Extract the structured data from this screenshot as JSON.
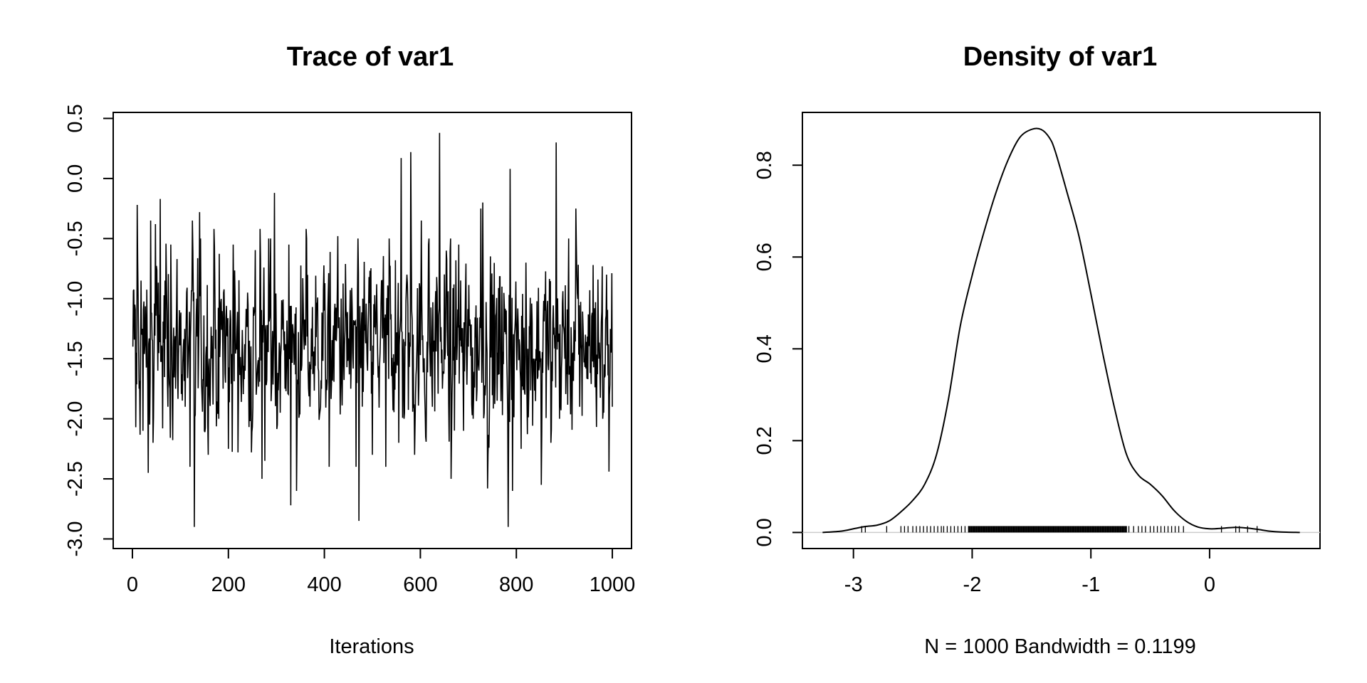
{
  "chart_data": [
    {
      "type": "line",
      "title": "Trace of var1",
      "xlabel": "Iterations",
      "ylabel": "",
      "xlim": [
        -40,
        1040
      ],
      "ylim": [
        -3.08,
        0.55
      ],
      "xticks": [
        0,
        200,
        400,
        600,
        800,
        1000
      ],
      "xtick_labels": [
        "0",
        "200",
        "400",
        "600",
        "800",
        "1000"
      ],
      "yticks": [
        -3.0,
        -2.5,
        -2.0,
        -1.5,
        -1.0,
        -0.5,
        0.0,
        0.5
      ],
      "ytick_labels": [
        "-3.0",
        "-2.5",
        "-2.0",
        "-1.5",
        "-1.0",
        "-0.5",
        "0.0",
        "0.5"
      ],
      "grid": false,
      "n_iterations": 1000,
      "series": [
        {
          "color": "#000000",
          "keypoints": [
            [
              1,
              -1.4
            ],
            [
              5,
              -1.05
            ],
            [
              7,
              -2.07
            ],
            [
              10,
              -0.22
            ],
            [
              14,
              -1.75
            ],
            [
              18,
              -0.85
            ],
            [
              22,
              -2.1
            ],
            [
              28,
              -1.3
            ],
            [
              33,
              -2.45
            ],
            [
              38,
              -0.35
            ],
            [
              43,
              -2.2
            ],
            [
              48,
              -0.38
            ],
            [
              53,
              -1.6
            ],
            [
              58,
              -0.17
            ],
            [
              63,
              -2.08
            ],
            [
              68,
              -0.85
            ],
            [
              74,
              -1.9
            ],
            [
              80,
              -0.55
            ],
            [
              90,
              -1.75
            ],
            [
              100,
              -1.2
            ],
            [
              110,
              -1.9
            ],
            [
              120,
              -2.4
            ],
            [
              125,
              -0.35
            ],
            [
              129,
              -2.9
            ],
            [
              134,
              -1.0
            ],
            [
              140,
              -0.28
            ],
            [
              150,
              -2.1
            ],
            [
              160,
              -1.5
            ],
            [
              170,
              -0.42
            ],
            [
              180,
              -2.0
            ],
            [
              190,
              -0.95
            ],
            [
              200,
              -2.25
            ],
            [
              210,
              -0.55
            ],
            [
              220,
              -2.28
            ],
            [
              235,
              -1.6
            ],
            [
              240,
              -0.95
            ],
            [
              248,
              -2.28
            ],
            [
              258,
              -1.8
            ],
            [
              266,
              -0.42
            ],
            [
              270,
              -2.5
            ],
            [
              276,
              -2.35
            ],
            [
              282,
              -1.3
            ],
            [
              288,
              -0.5
            ],
            [
              296,
              -0.12
            ],
            [
              302,
              -2.05
            ],
            [
              310,
              -1.4
            ],
            [
              318,
              -1.75
            ],
            [
              326,
              -0.55
            ],
            [
              330,
              -2.72
            ],
            [
              336,
              -1.3
            ],
            [
              342,
              -2.6
            ],
            [
              352,
              -1.6
            ],
            [
              362,
              -0.42
            ],
            [
              370,
              -1.9
            ],
            [
              380,
              -1.4
            ],
            [
              392,
              -1.9
            ],
            [
              400,
              -1.1
            ],
            [
              410,
              -2.4
            ],
            [
              428,
              -0.48
            ],
            [
              440,
              -1.5
            ],
            [
              455,
              -1.75
            ],
            [
              466,
              -2.4
            ],
            [
              472,
              -2.85
            ],
            [
              480,
              -1.0
            ],
            [
              490,
              -1.6
            ],
            [
              500,
              -2.3
            ],
            [
              510,
              -1.2
            ],
            [
              520,
              -0.85
            ],
            [
              528,
              -2.4
            ],
            [
              535,
              -0.5
            ],
            [
              548,
              -0.68
            ],
            [
              555,
              -2.2
            ],
            [
              560,
              0.17
            ],
            [
              566,
              -2.0
            ],
            [
              572,
              -0.8
            ],
            [
              580,
              0.22
            ],
            [
              588,
              -2.3
            ],
            [
              595,
              -1.4
            ],
            [
              602,
              -0.35
            ],
            [
              611,
              -2.15
            ],
            [
              617,
              -0.55
            ],
            [
              625,
              -1.9
            ],
            [
              634,
              -0.82
            ],
            [
              640,
              0.38
            ],
            [
              646,
              -1.75
            ],
            [
              654,
              -0.6
            ],
            [
              664,
              -2.5
            ],
            [
              672,
              -1.4
            ],
            [
              680,
              -0.55
            ],
            [
              690,
              -2.1
            ],
            [
              700,
              -1.4
            ],
            [
              710,
              -2.0
            ],
            [
              726,
              -0.25
            ],
            [
              730,
              -0.2
            ],
            [
              736,
              -1.7
            ],
            [
              740,
              -2.58
            ],
            [
              748,
              -1.2
            ],
            [
              760,
              -1.85
            ],
            [
              770,
              -0.9
            ],
            [
              783,
              -2.9
            ],
            [
              787,
              0.08
            ],
            [
              792,
              -2.6
            ],
            [
              800,
              -1.35
            ],
            [
              810,
              -2.25
            ],
            [
              820,
              -0.7
            ],
            [
              836,
              -1.5
            ],
            [
              852,
              -2.55
            ],
            [
              860,
              -1.1
            ],
            [
              872,
              -2.2
            ],
            [
              878,
              -1.3
            ],
            [
              883,
              0.3
            ],
            [
              890,
              -2.0
            ],
            [
              900,
              -1.3
            ],
            [
              912,
              -1.6
            ],
            [
              924,
              -0.25
            ],
            [
              932,
              -1.9
            ],
            [
              944,
              -1.3
            ],
            [
              960,
              -0.72
            ],
            [
              972,
              -1.5
            ],
            [
              980,
              -2.0
            ],
            [
              988,
              -0.8
            ],
            [
              993,
              -2.44
            ],
            [
              997,
              -1.45
            ],
            [
              1000,
              -1.9
            ]
          ]
        }
      ]
    },
    {
      "type": "line",
      "title": "Density of var1",
      "xlabel": "N = 1000   Bandwidth = 0.1199",
      "ylabel": "",
      "xlim": [
        -3.43,
        0.93
      ],
      "ylim": [
        -0.035,
        0.915
      ],
      "xticks": [
        -3,
        -2,
        -1,
        0
      ],
      "xtick_labels": [
        "-3",
        "-2",
        "-1",
        "0"
      ],
      "yticks": [
        0.0,
        0.2,
        0.4,
        0.6,
        0.8
      ],
      "ytick_labels": [
        "0.0",
        "0.2",
        "0.4",
        "0.6",
        "0.8"
      ],
      "grid": false,
      "baseline": 0,
      "baseline_color": "#cccccc",
      "series": [
        {
          "color": "#000000",
          "points": [
            [
              -3.26,
              0.0
            ],
            [
              -3.1,
              0.003
            ],
            [
              -3.0,
              0.008
            ],
            [
              -2.9,
              0.013
            ],
            [
              -2.8,
              0.016
            ],
            [
              -2.7,
              0.025
            ],
            [
              -2.6,
              0.045
            ],
            [
              -2.5,
              0.07
            ],
            [
              -2.4,
              0.105
            ],
            [
              -2.3,
              0.17
            ],
            [
              -2.2,
              0.29
            ],
            [
              -2.1,
              0.45
            ],
            [
              -2.0,
              0.56
            ],
            [
              -1.9,
              0.655
            ],
            [
              -1.8,
              0.74
            ],
            [
              -1.7,
              0.81
            ],
            [
              -1.6,
              0.86
            ],
            [
              -1.5,
              0.878
            ],
            [
              -1.42,
              0.878
            ],
            [
              -1.35,
              0.86
            ],
            [
              -1.3,
              0.83
            ],
            [
              -1.2,
              0.74
            ],
            [
              -1.1,
              0.645
            ],
            [
              -1.0,
              0.52
            ],
            [
              -0.9,
              0.39
            ],
            [
              -0.8,
              0.27
            ],
            [
              -0.7,
              0.17
            ],
            [
              -0.6,
              0.125
            ],
            [
              -0.5,
              0.105
            ],
            [
              -0.4,
              0.08
            ],
            [
              -0.3,
              0.048
            ],
            [
              -0.2,
              0.025
            ],
            [
              -0.1,
              0.012
            ],
            [
              0.0,
              0.008
            ],
            [
              0.1,
              0.009
            ],
            [
              0.2,
              0.011
            ],
            [
              0.3,
              0.01
            ],
            [
              0.4,
              0.007
            ],
            [
              0.5,
              0.003
            ],
            [
              0.6,
              0.001
            ],
            [
              0.76,
              0.0
            ]
          ]
        }
      ],
      "rug": [
        -2.93,
        -2.9,
        -2.72,
        -2.6,
        -2.57,
        -2.54,
        -2.5,
        -2.47,
        -2.44,
        -2.41,
        -2.38,
        -2.35,
        -2.32,
        -2.29,
        -2.26,
        -2.24,
        -2.21,
        -2.18,
        -2.15,
        -2.12,
        -2.09,
        -2.06,
        -2.03,
        -0.68,
        -0.64,
        -0.6,
        -0.57,
        -0.54,
        -0.5,
        -0.47,
        -0.44,
        -0.41,
        -0.38,
        -0.35,
        -0.32,
        -0.29,
        -0.26,
        -0.22,
        0.1,
        0.22,
        0.25,
        0.32,
        0.4
      ],
      "rug_dense_range": [
        -2.03,
        -0.7
      ],
      "rug_dense_step": 0.007
    }
  ]
}
